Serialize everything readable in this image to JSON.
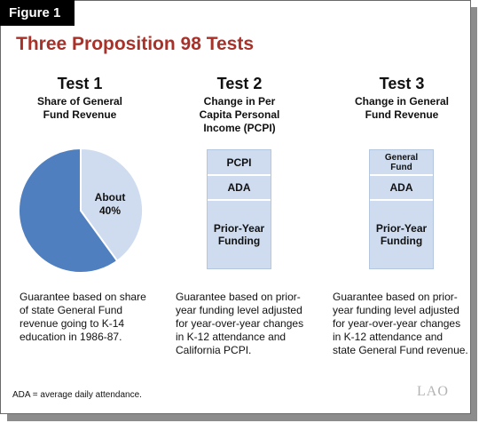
{
  "figure_label": "Figure 1",
  "title": "Three Proposition 98 Tests",
  "tests": [
    {
      "heading": "Test 1",
      "subtitle": [
        "Share of General",
        "Fund Revenue"
      ],
      "description": [
        "Guarantee based on share",
        "of state General Fund",
        "revenue going to K-14",
        "education in 1986-87."
      ]
    },
    {
      "heading": "Test 2",
      "subtitle": [
        "Change in Per",
        "Capita Personal",
        "Income (PCPI)"
      ],
      "blocks": [
        "PCPI",
        "ADA",
        "Prior-Year Funding"
      ],
      "description": [
        "Guarantee based on prior-",
        "year funding level adjusted",
        "for year-over-year changes",
        "in K-12 attendance and",
        "California PCPI."
      ]
    },
    {
      "heading": "Test 3",
      "subtitle": [
        "Change in General",
        "Fund Revenue"
      ],
      "blocks": [
        "General Fund",
        "ADA",
        "Prior-Year Funding"
      ],
      "description": [
        "Guarantee based on prior-",
        "year funding level adjusted",
        "for year-over-year changes",
        "in K-12 attendance and",
        "state General Fund revenue."
      ]
    }
  ],
  "chart_data": {
    "type": "pie",
    "slices": [
      {
        "label": "About 40%",
        "value": 40,
        "color": "#cfdcef"
      },
      {
        "label": "",
        "value": 60,
        "color": "#4f7fbf"
      }
    ]
  },
  "footnote": "ADA = average daily attendance.",
  "logo": "LAO"
}
